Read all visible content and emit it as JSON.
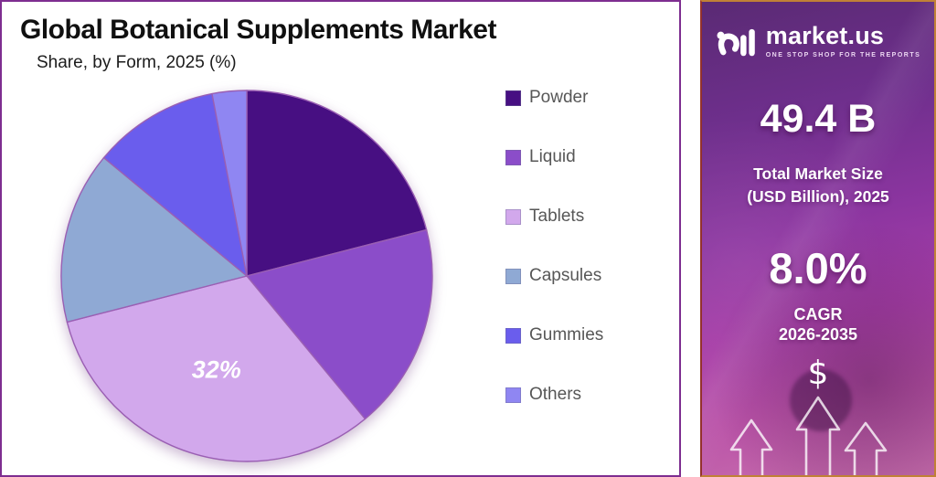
{
  "page": {
    "title": "Global Botanical Supplements Market",
    "subtitle": "Share, by Form, 2025 (%)"
  },
  "chart_data": {
    "type": "pie",
    "title": "Global Botanical Supplements Market",
    "subtitle": "Share, by Form, 2025 (%)",
    "categories": [
      "Powder",
      "Liquid",
      "Tablets",
      "Capsules",
      "Gummies",
      "Others"
    ],
    "values": [
      21,
      18,
      32,
      15,
      11,
      3
    ],
    "unit": "%",
    "colors": [
      "#470f82",
      "#8b4dc9",
      "#d2a8ec",
      "#8fa9d4",
      "#6a5ded",
      "#8f86f2"
    ],
    "start_angle_deg": 0,
    "direction": "clockwise",
    "legend_position": "right",
    "labels_shown": [
      {
        "category": "Tablets",
        "text": "32%"
      }
    ]
  },
  "legend": {
    "items": [
      {
        "label": "Powder",
        "color": "#470f82"
      },
      {
        "label": "Liquid",
        "color": "#8b4dc9"
      },
      {
        "label": "Tablets",
        "color": "#d2a8ec"
      },
      {
        "label": "Capsules",
        "color": "#8fa9d4"
      },
      {
        "label": "Gummies",
        "color": "#6a5ded"
      },
      {
        "label": "Others",
        "color": "#8f86f2"
      }
    ]
  },
  "sidebar": {
    "brand_name": "market.us",
    "brand_tagline": "ONE STOP SHOP FOR THE REPORTS",
    "market_size_value": "49.4 B",
    "market_size_label_line1": "Total Market Size",
    "market_size_label_line2": "(USD Billion), 2025",
    "cagr_value": "8.0%",
    "cagr_label": "CAGR",
    "cagr_period": "2026-2035",
    "dollar_symbol": "$"
  },
  "style": {
    "pie_stroke": "#9a5fb3",
    "card_border": "#7e2e90",
    "panel_border": "#c08136"
  }
}
